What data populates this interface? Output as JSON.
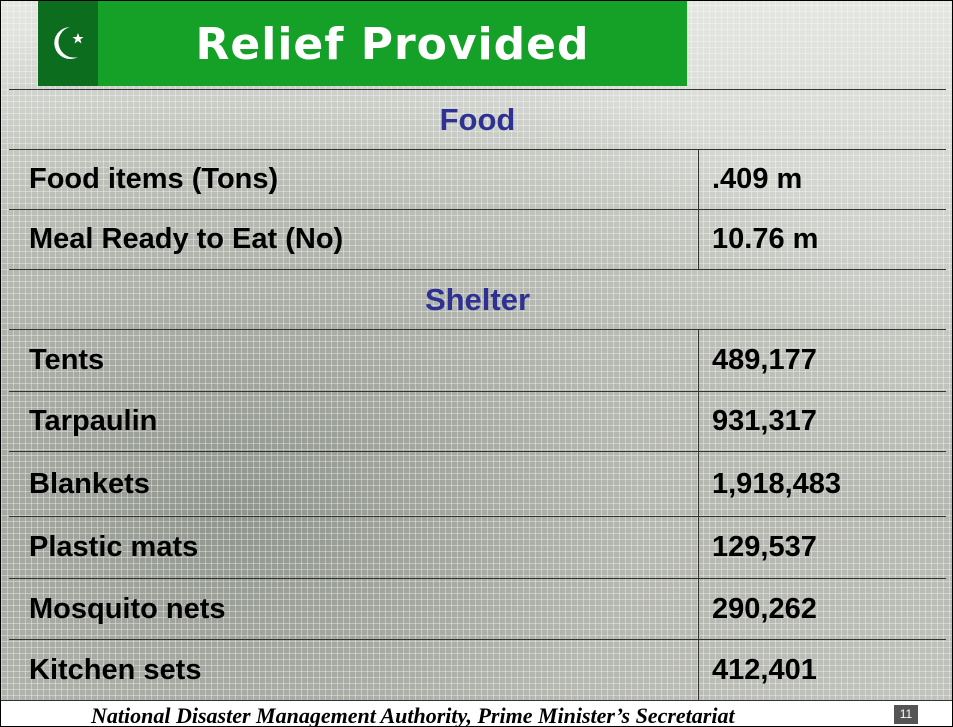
{
  "header": {
    "title": "Relief Provided"
  },
  "table": {
    "sections": [
      {
        "title": "Food",
        "rows": [
          [
            "Food items (Tons)",
            ".409 m"
          ],
          [
            "Meal Ready to Eat (No)",
            "10.76 m"
          ]
        ]
      },
      {
        "title": "Shelter",
        "rows": [
          [
            "Tents",
            "489,177"
          ],
          [
            "Tarpaulin",
            "931,317"
          ],
          [
            "Blankets",
            "1,918,483"
          ],
          [
            "Plastic mats",
            "129,537"
          ],
          [
            "Mosquito nets",
            "290,262"
          ],
          [
            "Kitchen sets",
            "412,401"
          ]
        ]
      }
    ]
  },
  "footer": {
    "text": "National Disaster Management Authority, Prime Minister’s Secretariat",
    "page": "11"
  }
}
